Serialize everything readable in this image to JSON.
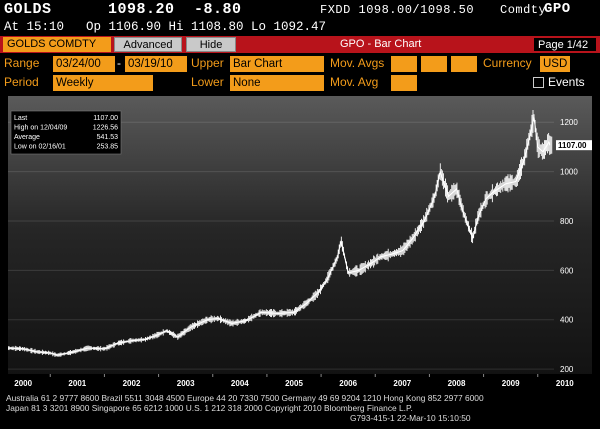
{
  "header": {
    "ticker": "GOLDS",
    "price": "1098.20",
    "change": "-8.80",
    "quote": "FXDD 1098.00/1098.50",
    "brand_prefix": "Comdty",
    "brand_code": "GPO",
    "time": "At 15:10",
    "ohl": "Op 1106.90 Hi 1108.80 Lo 1092.47"
  },
  "toolbar": {
    "security": "GOLDS COMDTY",
    "advanced": "Advanced",
    "hide": "Hide",
    "title": "GPO - Bar Chart",
    "page": "Page 1/42"
  },
  "controls": {
    "range_label": "Range",
    "range_start": "03/24/00",
    "range_sep": "-",
    "range_end": "03/19/10",
    "upper_label": "Upper",
    "upper_value": "Bar Chart",
    "mov_avgs_label": "Mov. Avgs",
    "currency_label": "Currency",
    "currency_value": "USD",
    "period_label": "Period",
    "period_value": "Weekly",
    "lower_label": "Lower",
    "lower_value": "None",
    "mov_avg_label": "Mov. Avg",
    "events_label": "Events"
  },
  "legend": {
    "rows": [
      {
        "label": "Last",
        "value": "1107.00"
      },
      {
        "label": "High on 12/04/09",
        "value": "1226.56"
      },
      {
        "label": "Average",
        "value": "541.53"
      },
      {
        "label": "Low on 02/16/01",
        "value": "253.85"
      }
    ]
  },
  "colors": {
    "toolbar": "#b8131b",
    "field": "#f39c1a",
    "chart_bg": "#2a2a2a"
  },
  "chart_data": {
    "type": "line",
    "x_ticks": [
      "2000",
      "2001",
      "2002",
      "2003",
      "2004",
      "2005",
      "2006",
      "2007",
      "2008",
      "2009",
      "2010"
    ],
    "y_ticks": [
      200,
      400,
      600,
      800,
      1000,
      1200
    ],
    "ylim": [
      180,
      1290
    ],
    "xlim": [
      2000.22,
      2010.3
    ],
    "last_label": "1107.00",
    "series": [
      {
        "x": [
          2000.22,
          2000.5,
          2000.75,
          2001.0,
          2001.13,
          2001.4,
          2001.7,
          2002.0,
          2002.25,
          2002.5,
          2002.75,
          2003.0,
          2003.15,
          2003.35,
          2003.6,
          2003.9,
          2004.1,
          2004.35,
          2004.6,
          2004.9,
          2005.2,
          2005.5,
          2005.75,
          2005.95,
          2006.1,
          2006.3,
          2006.37,
          2006.5,
          2006.7,
          2006.9,
          2007.1,
          2007.3,
          2007.5,
          2007.7,
          2007.9,
          2008.1,
          2008.2,
          2008.35,
          2008.5,
          2008.65,
          2008.8,
          2008.9,
          2009.05,
          2009.2,
          2009.4,
          2009.6,
          2009.75,
          2009.93,
          2010.0,
          2010.1,
          2010.2,
          2010.22
        ],
        "values": [
          285,
          282,
          270,
          265,
          256,
          268,
          285,
          282,
          305,
          315,
          320,
          340,
          355,
          330,
          370,
          400,
          405,
          385,
          395,
          430,
          425,
          430,
          470,
          510,
          560,
          650,
          720,
          590,
          600,
          625,
          655,
          665,
          680,
          730,
          800,
          900,
          1000,
          900,
          930,
          820,
          730,
          820,
          890,
          920,
          950,
          960,
          1050,
          1220,
          1100,
          1080,
          1120,
          1107
        ]
      }
    ]
  },
  "footer": {
    "line1": "Australia 61 2 9777 8600 Brazil 5511 3048 4500 Europe 44 20 7330 7500 Germany 49 69 9204 1210 Hong Kong 852 2977 6000",
    "line2": "Japan 81 3 3201 8900           Singapore 65 6212 1000           U.S. 1 212 318 2000         Copyright 2010 Bloomberg Finance L.P.",
    "line3": "G793-415-1 22-Mar-10 15:10:50"
  }
}
